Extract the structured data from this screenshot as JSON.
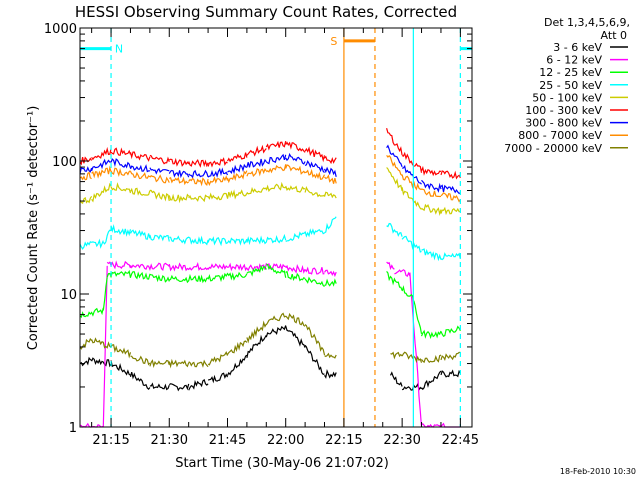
{
  "chart_data": {
    "type": "line",
    "title": "HESSI Observing Summary Count Rates, Corrected",
    "xlabel": "Start Time (30-May-06 21:07:02)",
    "ylabel": "Corrected Count Rate (s⁻¹ detector⁻¹)",
    "y_scale": "log",
    "ylim": [
      1,
      1000
    ],
    "xlim": [
      "21:07",
      "22:48"
    ],
    "x_ticks": [
      "21:15",
      "21:30",
      "21:45",
      "22:00",
      "22:15",
      "22:30",
      "22:45"
    ],
    "y_ticks": [
      "1",
      "10",
      "100",
      "1000"
    ],
    "legend_header": [
      "Det 1,3,4,5,6,9,",
      "Att 0"
    ],
    "legend_position": "right",
    "timestamp": "18-Feb-2010 10:30",
    "series": [
      {
        "name": "3 - 6 keV",
        "color": "#000000",
        "values": [
          [
            "21:07",
            3
          ],
          [
            "21:10",
            3.2
          ],
          [
            "21:15",
            3
          ],
          [
            "21:20",
            2.5
          ],
          [
            "21:25",
            2
          ],
          [
            "21:30",
            2
          ],
          [
            "21:35",
            2
          ],
          [
            "21:40",
            2.2
          ],
          [
            "21:45",
            2.5
          ],
          [
            "21:50",
            3.5
          ],
          [
            "21:55",
            5
          ],
          [
            "22:00",
            5.5
          ],
          [
            "22:05",
            4
          ],
          [
            "22:10",
            2.5
          ],
          [
            "22:13",
            2.5
          ],
          [
            "22:27",
            2.5
          ],
          [
            "22:30",
            2
          ],
          [
            "22:35",
            2
          ],
          [
            "22:40",
            2.5
          ],
          [
            "22:45",
            2.5
          ]
        ]
      },
      {
        "name": "6 - 12 keV",
        "color": "#ff00ff",
        "values": [
          [
            "21:07",
            1
          ],
          [
            "21:13",
            1
          ],
          [
            "21:14",
            16.5
          ],
          [
            "21:20",
            16.5
          ],
          [
            "21:30",
            16
          ],
          [
            "21:40",
            16
          ],
          [
            "21:50",
            16
          ],
          [
            "22:00",
            16
          ],
          [
            "22:05",
            15
          ],
          [
            "22:10",
            15
          ],
          [
            "22:13",
            14.5
          ],
          [
            "22:26",
            17
          ],
          [
            "22:28",
            15
          ],
          [
            "22:32",
            14
          ],
          [
            "22:35",
            1
          ],
          [
            "22:40",
            1
          ],
          [
            "22:45",
            1
          ]
        ]
      },
      {
        "name": "12 - 25 keV",
        "color": "#00ff00",
        "values": [
          [
            "21:07",
            7
          ],
          [
            "21:13",
            7.5
          ],
          [
            "21:14",
            14
          ],
          [
            "21:20",
            14
          ],
          [
            "21:30",
            13
          ],
          [
            "21:40",
            13
          ],
          [
            "21:50",
            14
          ],
          [
            "21:55",
            16
          ],
          [
            "22:00",
            14
          ],
          [
            "22:05",
            13
          ],
          [
            "22:10",
            12
          ],
          [
            "22:13",
            12
          ],
          [
            "22:26",
            14
          ],
          [
            "22:30",
            11
          ],
          [
            "22:33",
            9
          ],
          [
            "22:35",
            5
          ],
          [
            "22:40",
            5
          ],
          [
            "22:45",
            5.5
          ]
        ]
      },
      {
        "name": "25 - 50 keV",
        "color": "#00ffff",
        "values": [
          [
            "21:07",
            23
          ],
          [
            "21:13",
            24
          ],
          [
            "21:15",
            31
          ],
          [
            "21:20",
            29
          ],
          [
            "21:25",
            27
          ],
          [
            "21:30",
            26
          ],
          [
            "21:40",
            25
          ],
          [
            "21:50",
            25
          ],
          [
            "22:00",
            26
          ],
          [
            "22:05",
            28
          ],
          [
            "22:10",
            30
          ],
          [
            "22:13",
            38
          ],
          [
            "22:26",
            34
          ],
          [
            "22:30",
            27
          ],
          [
            "22:35",
            21
          ],
          [
            "22:40",
            19
          ],
          [
            "22:45",
            19
          ]
        ]
      },
      {
        "name": "50 - 100 keV",
        "color": "#cccc00",
        "values": [
          [
            "21:07",
            50
          ],
          [
            "21:10",
            52
          ],
          [
            "21:15",
            65
          ],
          [
            "21:20",
            60
          ],
          [
            "21:25",
            57
          ],
          [
            "21:30",
            53
          ],
          [
            "21:35",
            53
          ],
          [
            "21:40",
            53
          ],
          [
            "21:45",
            55
          ],
          [
            "21:50",
            58
          ],
          [
            "21:55",
            62
          ],
          [
            "22:00",
            64
          ],
          [
            "22:05",
            60
          ],
          [
            "22:10",
            55
          ],
          [
            "22:13",
            55
          ],
          [
            "22:26",
            90
          ],
          [
            "22:30",
            60
          ],
          [
            "22:35",
            45
          ],
          [
            "22:40",
            42
          ],
          [
            "22:45",
            42
          ]
        ]
      },
      {
        "name": "100 - 300 keV",
        "color": "#ff0000",
        "values": [
          [
            "21:07",
            100
          ],
          [
            "21:10",
            105
          ],
          [
            "21:15",
            120
          ],
          [
            "21:20",
            112
          ],
          [
            "21:25",
            105
          ],
          [
            "21:30",
            100
          ],
          [
            "21:35",
            96
          ],
          [
            "21:40",
            96
          ],
          [
            "21:45",
            100
          ],
          [
            "21:50",
            112
          ],
          [
            "21:55",
            125
          ],
          [
            "22:00",
            135
          ],
          [
            "22:05",
            122
          ],
          [
            "22:10",
            105
          ],
          [
            "22:13",
            100
          ],
          [
            "22:26",
            170
          ],
          [
            "22:30",
            115
          ],
          [
            "22:35",
            85
          ],
          [
            "22:40",
            80
          ],
          [
            "22:45",
            78
          ]
        ]
      },
      {
        "name": "300 - 800 keV",
        "color": "#0000ff",
        "values": [
          [
            "21:07",
            85
          ],
          [
            "21:10",
            88
          ],
          [
            "21:15",
            100
          ],
          [
            "21:20",
            92
          ],
          [
            "21:25",
            86
          ],
          [
            "21:30",
            82
          ],
          [
            "21:35",
            80
          ],
          [
            "21:40",
            80
          ],
          [
            "21:45",
            83
          ],
          [
            "21:50",
            92
          ],
          [
            "21:55",
            100
          ],
          [
            "22:00",
            108
          ],
          [
            "22:05",
            98
          ],
          [
            "22:10",
            86
          ],
          [
            "22:13",
            80
          ],
          [
            "22:26",
            130
          ],
          [
            "22:30",
            90
          ],
          [
            "22:35",
            68
          ],
          [
            "22:40",
            62
          ],
          [
            "22:45",
            60
          ]
        ]
      },
      {
        "name": "800 - 7000 keV",
        "color": "#ff8c00",
        "values": [
          [
            "21:07",
            75
          ],
          [
            "21:10",
            78
          ],
          [
            "21:15",
            85
          ],
          [
            "21:20",
            80
          ],
          [
            "21:25",
            75
          ],
          [
            "21:30",
            72
          ],
          [
            "21:35",
            70
          ],
          [
            "21:40",
            70
          ],
          [
            "21:45",
            72
          ],
          [
            "21:50",
            80
          ],
          [
            "21:55",
            85
          ],
          [
            "22:00",
            90
          ],
          [
            "22:05",
            83
          ],
          [
            "22:10",
            75
          ],
          [
            "22:13",
            70
          ],
          [
            "22:26",
            110
          ],
          [
            "22:30",
            78
          ],
          [
            "22:35",
            60
          ],
          [
            "22:40",
            55
          ],
          [
            "22:45",
            52
          ]
        ]
      },
      {
        "name": "7000 - 20000 keV",
        "color": "#808000",
        "values": [
          [
            "21:07",
            4
          ],
          [
            "21:10",
            4.5
          ],
          [
            "21:15",
            4
          ],
          [
            "21:20",
            3.5
          ],
          [
            "21:25",
            3
          ],
          [
            "21:30",
            3
          ],
          [
            "21:35",
            3
          ],
          [
            "21:40",
            3
          ],
          [
            "21:45",
            3.5
          ],
          [
            "21:50",
            4.5
          ],
          [
            "21:55",
            6
          ],
          [
            "22:00",
            7
          ],
          [
            "22:05",
            6
          ],
          [
            "22:10",
            3.5
          ],
          [
            "22:13",
            3.5
          ],
          [
            "22:27",
            3.5
          ],
          [
            "22:30",
            3.5
          ],
          [
            "22:35",
            3.2
          ],
          [
            "22:40",
            3.3
          ],
          [
            "22:45",
            3.5
          ]
        ]
      }
    ],
    "annotations": [
      {
        "label": "N",
        "color": "#00ffff",
        "span": [
          "21:07",
          "21:15"
        ],
        "level": 700,
        "edges": [
          "21:15"
        ],
        "level_after": 700,
        "after": [
          "22:45",
          "22:48"
        ],
        "after_edges": [
          "22:45"
        ]
      },
      {
        "label": "S",
        "color": "#ff8c00",
        "span": [
          "22:15",
          "22:23"
        ],
        "level": 800,
        "edges": [
          "22:15",
          "22:23"
        ]
      }
    ]
  }
}
